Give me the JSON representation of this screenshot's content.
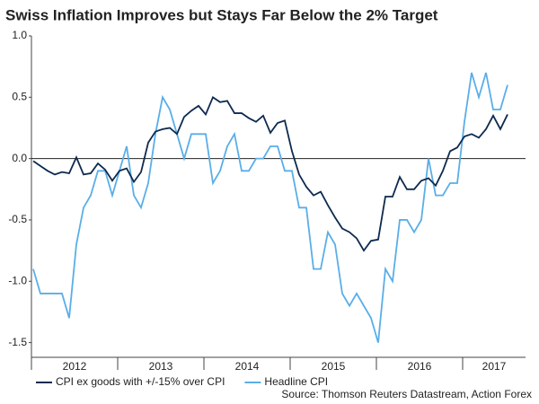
{
  "chart_data": {
    "type": "line",
    "title": "Swiss Inflation Improves but Stays Far Below the 2% Target",
    "source": "Source: Thomson Reuters Datastream, Action Forex",
    "categories": [
      "2012",
      null,
      null,
      null,
      null,
      null,
      null,
      null,
      null,
      null,
      null,
      null,
      "2013",
      null,
      null,
      null,
      null,
      null,
      null,
      null,
      null,
      null,
      null,
      null,
      "2014",
      null,
      null,
      null,
      null,
      null,
      null,
      null,
      null,
      null,
      null,
      null,
      "2015",
      null,
      null,
      null,
      null,
      null,
      null,
      null,
      null,
      null,
      null,
      null,
      "2016",
      null,
      null,
      null,
      null,
      null,
      null,
      null,
      null,
      null,
      null,
      null,
      "2017",
      null,
      null,
      null,
      null,
      null,
      null
    ],
    "series": [
      {
        "name": "CPI ex goods with +/-15% over CPI",
        "color": "#0d2a4f",
        "values": [
          -0.02,
          -0.06,
          -0.1,
          -0.13,
          -0.11,
          -0.12,
          0.01,
          -0.13,
          -0.12,
          -0.04,
          -0.09,
          -0.18,
          -0.1,
          -0.08,
          -0.19,
          -0.11,
          0.13,
          0.22,
          0.24,
          0.25,
          0.2,
          0.34,
          0.39,
          0.43,
          0.36,
          0.5,
          0.46,
          0.47,
          0.37,
          0.37,
          0.33,
          0.3,
          0.35,
          0.21,
          0.29,
          0.31,
          0.06,
          -0.13,
          -0.23,
          -0.3,
          -0.27,
          -0.38,
          -0.48,
          -0.57,
          -0.6,
          -0.65,
          -0.75,
          -0.67,
          -0.66,
          -0.31,
          -0.31,
          -0.15,
          -0.25,
          -0.25,
          -0.18,
          -0.16,
          -0.22,
          -0.1,
          0.06,
          0.09,
          0.18,
          0.2,
          0.17,
          0.24,
          0.35,
          0.24,
          0.36
        ]
      },
      {
        "name": "Headline CPI",
        "color": "#5aaee8",
        "values": [
          -0.9,
          -1.1,
          -1.1,
          -1.1,
          -1.1,
          -1.3,
          -0.7,
          -0.4,
          -0.3,
          -0.1,
          -0.1,
          -0.3,
          -0.1,
          0.1,
          -0.3,
          -0.4,
          -0.2,
          0.2,
          0.5,
          0.4,
          0.2,
          0.0,
          0.2,
          0.2,
          0.2,
          -0.2,
          -0.1,
          0.1,
          0.2,
          -0.1,
          -0.1,
          0.0,
          0.0,
          0.1,
          0.1,
          -0.1,
          -0.1,
          -0.4,
          -0.4,
          -0.9,
          -0.9,
          -0.6,
          -0.7,
          -1.1,
          -1.2,
          -1.1,
          -1.2,
          -1.3,
          -1.5,
          -0.9,
          -1.0,
          -0.5,
          -0.5,
          -0.6,
          -0.5,
          0.0,
          -0.3,
          -0.3,
          -0.2,
          -0.2,
          0.3,
          0.7,
          0.5,
          0.7,
          0.4,
          0.4,
          0.6
        ]
      }
    ],
    "ylim": [
      -1.62,
      1.0
    ],
    "yticks": [
      {
        "value": 1.0,
        "label": "1.0"
      },
      0.5,
      {
        "value": 0.0,
        "label": "0.0"
      },
      -0.5,
      {
        "value": -1.0,
        "label": "-1.0"
      },
      {
        "value": -1.5,
        "label": "-1.5"
      }
    ],
    "zero_line": true,
    "legend": "bottom-left"
  }
}
